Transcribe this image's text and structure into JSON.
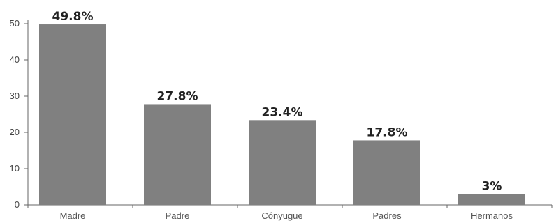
{
  "chart_data": {
    "type": "bar",
    "categories": [
      "Madre",
      "Padre",
      "Cónyugue",
      "Padres",
      "Hermanos"
    ],
    "values": [
      49.8,
      27.8,
      23.4,
      17.8,
      3
    ],
    "data_labels": [
      "49.8%",
      "27.8%",
      "23.4%",
      "17.8%",
      "3%"
    ],
    "title": "",
    "xlabel": "",
    "ylabel": "",
    "ylim": [
      0,
      50
    ],
    "yticks": [
      0,
      10,
      20,
      30,
      40,
      50
    ],
    "ytick_labels": [
      "0",
      "10",
      "20",
      "30",
      "40",
      "50"
    ],
    "grid": false,
    "bar_color": "#808080"
  }
}
